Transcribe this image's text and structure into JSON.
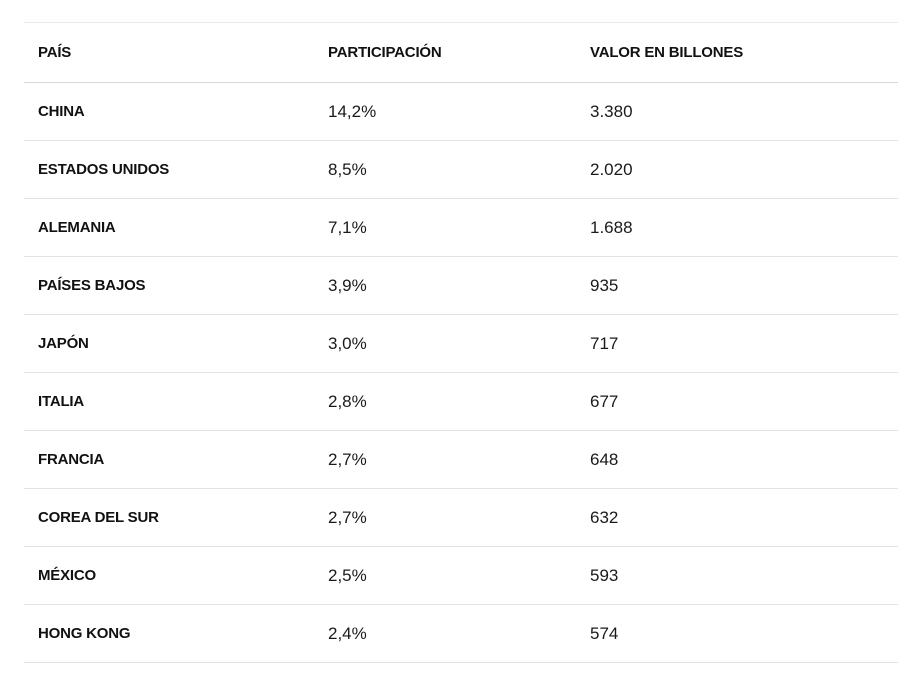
{
  "table": {
    "headers": [
      "PAÍS",
      "PARTICIPACIÓN",
      "VALOR EN BILLONES"
    ],
    "rows": [
      [
        "CHINA",
        "14,2%",
        "3.380"
      ],
      [
        "ESTADOS UNIDOS",
        "8,5%",
        "2.020"
      ],
      [
        "ALEMANIA",
        "7,1%",
        "1.688"
      ],
      [
        "PAÍSES BAJOS",
        "3,9%",
        "935"
      ],
      [
        "JAPÓN",
        "3,0%",
        "717"
      ],
      [
        "ITALIA",
        "2,8%",
        "677"
      ],
      [
        "FRANCIA",
        "2,7%",
        "648"
      ],
      [
        "COREA DEL SUR",
        "2,7%",
        "632"
      ],
      [
        "MÉXICO",
        "2,5%",
        "593"
      ],
      [
        "HONG KONG",
        "2,4%",
        "574"
      ]
    ]
  }
}
